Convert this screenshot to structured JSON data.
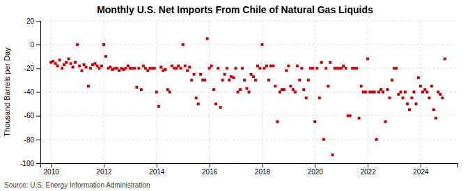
{
  "chart_data": {
    "type": "scatter",
    "title": "Monthly U.S. Net Imports From Chile of Natural Gas Liquids",
    "ylabel": "Thousand Barrels per Day",
    "source": "Source: U.S. Energy Information Administration",
    "xlim": [
      2009.6,
      2025.4
    ],
    "xticks": [
      2010,
      2012,
      2014,
      2016,
      2018,
      2020,
      2022,
      2024
    ],
    "ylim": [
      -100,
      20
    ],
    "yticks": [
      -100,
      -80,
      -60,
      -40,
      -20,
      0,
      20
    ],
    "grid": true,
    "color": "#cc0000",
    "marker": "square",
    "x": [
      2010.0,
      2010.08,
      2010.17,
      2010.25,
      2010.33,
      2010.42,
      2010.5,
      2010.58,
      2010.67,
      2010.75,
      2010.83,
      2010.92,
      2011.0,
      2011.08,
      2011.17,
      2011.25,
      2011.33,
      2011.42,
      2011.5,
      2011.58,
      2011.67,
      2011.75,
      2011.83,
      2011.92,
      2012.0,
      2012.08,
      2012.17,
      2012.25,
      2012.33,
      2012.42,
      2012.5,
      2012.58,
      2012.67,
      2012.75,
      2012.83,
      2012.92,
      2013.0,
      2013.08,
      2013.17,
      2013.25,
      2013.33,
      2013.42,
      2013.5,
      2013.58,
      2013.67,
      2013.75,
      2013.83,
      2013.92,
      2014.0,
      2014.08,
      2014.17,
      2014.25,
      2014.33,
      2014.42,
      2014.5,
      2014.58,
      2014.67,
      2014.75,
      2014.83,
      2014.92,
      2015.0,
      2015.08,
      2015.17,
      2015.25,
      2015.33,
      2015.42,
      2015.5,
      2015.58,
      2015.67,
      2015.75,
      2015.83,
      2015.92,
      2016.0,
      2016.08,
      2016.17,
      2016.25,
      2016.33,
      2016.42,
      2016.5,
      2016.58,
      2016.67,
      2016.75,
      2016.83,
      2016.92,
      2017.0,
      2017.08,
      2017.17,
      2017.25,
      2017.33,
      2017.42,
      2017.5,
      2017.58,
      2017.67,
      2017.75,
      2017.83,
      2017.92,
      2018.0,
      2018.08,
      2018.17,
      2018.25,
      2018.33,
      2018.42,
      2018.5,
      2018.58,
      2018.67,
      2018.75,
      2018.83,
      2018.92,
      2019.0,
      2019.08,
      2019.17,
      2019.25,
      2019.33,
      2019.42,
      2019.5,
      2019.58,
      2019.67,
      2019.75,
      2019.83,
      2019.92,
      2020.0,
      2020.08,
      2020.17,
      2020.25,
      2020.33,
      2020.42,
      2020.5,
      2020.58,
      2020.67,
      2020.75,
      2020.83,
      2020.92,
      2021.0,
      2021.08,
      2021.17,
      2021.25,
      2021.33,
      2021.42,
      2021.5,
      2021.58,
      2021.67,
      2021.75,
      2021.83,
      2021.92,
      2022.0,
      2022.08,
      2022.17,
      2022.25,
      2022.33,
      2022.42,
      2022.5,
      2022.58,
      2022.67,
      2022.75,
      2022.83,
      2022.92,
      2023.0,
      2023.08,
      2023.17,
      2023.25,
      2023.33,
      2023.42,
      2023.5,
      2023.58,
      2023.67,
      2023.75,
      2023.83,
      2023.92,
      2024.0,
      2024.08,
      2024.17,
      2024.25,
      2024.33,
      2024.42,
      2024.5,
      2024.58,
      2024.67,
      2024.75,
      2024.83,
      2024.92
    ],
    "values": [
      -15,
      -14,
      -16,
      -18,
      -13,
      -20,
      -17,
      -15,
      -12,
      -16,
      -19,
      -15,
      0,
      -18,
      -22,
      -17,
      -19,
      -35,
      -20,
      -17,
      -16,
      -18,
      -20,
      -18,
      0,
      -10,
      -20,
      -19,
      -21,
      -20,
      -20,
      -22,
      -20,
      -21,
      -20,
      -18,
      -20,
      -20,
      -20,
      -36,
      -20,
      -38,
      -18,
      -20,
      -22,
      -20,
      -20,
      -20,
      -40,
      -52,
      -19,
      -22,
      -21,
      -38,
      -40,
      -18,
      -20,
      -20,
      -18,
      -20,
      0,
      -18,
      -22,
      -19,
      -30,
      -25,
      -45,
      -50,
      -25,
      -30,
      -30,
      5,
      -20,
      -18,
      -38,
      -50,
      -20,
      -53,
      -30,
      -25,
      -20,
      -30,
      -27,
      -28,
      -20,
      -40,
      -38,
      -20,
      -30,
      -37,
      -40,
      -25,
      -27,
      -30,
      -18,
      -20,
      0,
      -20,
      -18,
      -30,
      -18,
      -18,
      -35,
      -65,
      -40,
      -38,
      -38,
      -22,
      -18,
      -35,
      -38,
      -40,
      -18,
      -30,
      -20,
      -38,
      -45,
      -30,
      -20,
      -20,
      -65,
      -20,
      -45,
      -15,
      -80,
      -20,
      -35,
      -15,
      -93,
      -20,
      -20,
      -20,
      -20,
      -18,
      -20,
      -60,
      -60,
      -20,
      -20,
      -20,
      -62,
      -35,
      -40,
      -40,
      -12,
      -40,
      -40,
      -40,
      -80,
      -40,
      -38,
      -40,
      -65,
      -38,
      -45,
      -30,
      -20,
      -20,
      -42,
      -40,
      -45,
      -40,
      -50,
      -55,
      -45,
      -40,
      -50,
      -28,
      -35,
      -40,
      -38,
      -40,
      -45,
      -35,
      -55,
      -62,
      -40,
      -42,
      -45,
      -12
    ]
  }
}
